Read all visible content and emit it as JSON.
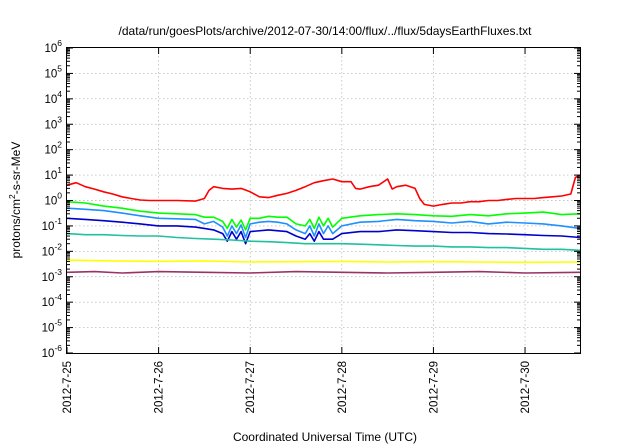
{
  "chart_data": {
    "type": "line",
    "title": "/data/run/goesPlots/archive/2012-07-30/14:00/flux/../flux/5daysEarthFluxes.txt",
    "xlabel": "Coordinated Universal Time (UTC)",
    "ylabel_main": "protons/cm",
    "ylabel_sup": "2",
    "ylabel_tail": "-s-sr-MeV",
    "y_scale": "log",
    "ylim": [
      1e-06,
      1000000.0
    ],
    "y_tick_base": "10",
    "y_tick_exponents": [
      "-6",
      "-5",
      "-4",
      "-3",
      "-2",
      "-1",
      "0",
      "1",
      "2",
      "3",
      "4",
      "5",
      "6"
    ],
    "x_range_days": [
      0,
      5.6
    ],
    "x_tick_labels": [
      "2012-7-25",
      "2012-7-26",
      "2012-7-27",
      "2012-7-28",
      "2012-7-29",
      "2012-7-30"
    ],
    "grid": true,
    "legend": "none",
    "series": [
      {
        "color": "#ff0000",
        "points": [
          [
            0,
            4
          ],
          [
            0.1,
            5
          ],
          [
            0.2,
            3.5
          ],
          [
            0.3,
            2.8
          ],
          [
            0.4,
            2.2
          ],
          [
            0.5,
            1.8
          ],
          [
            0.6,
            1.4
          ],
          [
            0.7,
            1.2
          ],
          [
            0.8,
            1.05
          ],
          [
            0.9,
            1.0
          ],
          [
            1.0,
            1.0
          ],
          [
            1.2,
            1.0
          ],
          [
            1.4,
            0.95
          ],
          [
            1.5,
            1.2
          ],
          [
            1.55,
            2.5
          ],
          [
            1.6,
            3.5
          ],
          [
            1.7,
            3.0
          ],
          [
            1.8,
            2.8
          ],
          [
            1.9,
            3.0
          ],
          [
            2.0,
            2.2
          ],
          [
            2.1,
            1.4
          ],
          [
            2.2,
            1.3
          ],
          [
            2.3,
            1.6
          ],
          [
            2.4,
            1.9
          ],
          [
            2.5,
            2.5
          ],
          [
            2.6,
            3.5
          ],
          [
            2.7,
            5
          ],
          [
            2.8,
            6
          ],
          [
            2.9,
            7
          ],
          [
            3.0,
            5.5
          ],
          [
            3.1,
            5.5
          ],
          [
            3.15,
            3
          ],
          [
            3.2,
            2.8
          ],
          [
            3.3,
            3.5
          ],
          [
            3.4,
            4
          ],
          [
            3.5,
            7
          ],
          [
            3.55,
            2.8
          ],
          [
            3.6,
            3.5
          ],
          [
            3.7,
            4
          ],
          [
            3.8,
            3
          ],
          [
            3.85,
            1.2
          ],
          [
            3.9,
            0.7
          ],
          [
            4.0,
            0.6
          ],
          [
            4.1,
            0.7
          ],
          [
            4.2,
            0.8
          ],
          [
            4.3,
            0.8
          ],
          [
            4.4,
            0.9
          ],
          [
            4.5,
            0.9
          ],
          [
            4.6,
            1.0
          ],
          [
            4.7,
            1.0
          ],
          [
            4.8,
            1.1
          ],
          [
            4.9,
            1.2
          ],
          [
            5.0,
            1.2
          ],
          [
            5.1,
            1.2
          ],
          [
            5.2,
            1.3
          ],
          [
            5.3,
            1.4
          ],
          [
            5.4,
            1.5
          ],
          [
            5.5,
            1.8
          ],
          [
            5.55,
            8
          ],
          [
            5.6,
            10
          ]
        ]
      },
      {
        "color": "#00ff00",
        "points": [
          [
            0,
            0.9
          ],
          [
            0.2,
            0.8
          ],
          [
            0.4,
            0.6
          ],
          [
            0.6,
            0.5
          ],
          [
            0.8,
            0.38
          ],
          [
            1.0,
            0.32
          ],
          [
            1.2,
            0.3
          ],
          [
            1.4,
            0.28
          ],
          [
            1.5,
            0.22
          ],
          [
            1.6,
            0.22
          ],
          [
            1.7,
            0.15
          ],
          [
            1.75,
            0.08
          ],
          [
            1.8,
            0.18
          ],
          [
            1.85,
            0.09
          ],
          [
            1.9,
            0.17
          ],
          [
            1.95,
            0.07
          ],
          [
            2.0,
            0.2
          ],
          [
            2.1,
            0.2
          ],
          [
            2.2,
            0.24
          ],
          [
            2.3,
            0.22
          ],
          [
            2.4,
            0.22
          ],
          [
            2.5,
            0.12
          ],
          [
            2.6,
            0.1
          ],
          [
            2.65,
            0.18
          ],
          [
            2.7,
            0.08
          ],
          [
            2.75,
            0.22
          ],
          [
            2.8,
            0.1
          ],
          [
            2.85,
            0.2
          ],
          [
            2.9,
            0.09
          ],
          [
            3.0,
            0.2
          ],
          [
            3.2,
            0.25
          ],
          [
            3.4,
            0.28
          ],
          [
            3.6,
            0.3
          ],
          [
            3.8,
            0.28
          ],
          [
            4.0,
            0.25
          ],
          [
            4.2,
            0.24
          ],
          [
            4.4,
            0.28
          ],
          [
            4.6,
            0.25
          ],
          [
            4.8,
            0.3
          ],
          [
            5.0,
            0.32
          ],
          [
            5.2,
            0.35
          ],
          [
            5.4,
            0.28
          ],
          [
            5.6,
            0.3
          ]
        ]
      },
      {
        "color": "#1e90ff",
        "points": [
          [
            0,
            0.5
          ],
          [
            0.2,
            0.45
          ],
          [
            0.4,
            0.4
          ],
          [
            0.6,
            0.32
          ],
          [
            0.8,
            0.25
          ],
          [
            1.0,
            0.2
          ],
          [
            1.2,
            0.19
          ],
          [
            1.4,
            0.18
          ],
          [
            1.5,
            0.12
          ],
          [
            1.6,
            0.15
          ],
          [
            1.7,
            0.09
          ],
          [
            1.75,
            0.04
          ],
          [
            1.8,
            0.1
          ],
          [
            1.85,
            0.05
          ],
          [
            1.9,
            0.11
          ],
          [
            1.95,
            0.035
          ],
          [
            2.0,
            0.12
          ],
          [
            2.1,
            0.14
          ],
          [
            2.2,
            0.15
          ],
          [
            2.3,
            0.14
          ],
          [
            2.4,
            0.12
          ],
          [
            2.5,
            0.07
          ],
          [
            2.6,
            0.05
          ],
          [
            2.65,
            0.1
          ],
          [
            2.7,
            0.04
          ],
          [
            2.75,
            0.12
          ],
          [
            2.8,
            0.05
          ],
          [
            2.85,
            0.1
          ],
          [
            2.9,
            0.05
          ],
          [
            3.0,
            0.1
          ],
          [
            3.2,
            0.14
          ],
          [
            3.4,
            0.15
          ],
          [
            3.6,
            0.18
          ],
          [
            3.8,
            0.16
          ],
          [
            4.0,
            0.15
          ],
          [
            4.2,
            0.13
          ],
          [
            4.4,
            0.15
          ],
          [
            4.6,
            0.12
          ],
          [
            4.8,
            0.14
          ],
          [
            5.0,
            0.13
          ],
          [
            5.2,
            0.12
          ],
          [
            5.4,
            0.1
          ],
          [
            5.6,
            0.08
          ]
        ]
      },
      {
        "color": "#0000cd",
        "points": [
          [
            0,
            0.2
          ],
          [
            0.2,
            0.18
          ],
          [
            0.4,
            0.16
          ],
          [
            0.6,
            0.14
          ],
          [
            0.8,
            0.12
          ],
          [
            1.0,
            0.1
          ],
          [
            1.2,
            0.1
          ],
          [
            1.4,
            0.09
          ],
          [
            1.5,
            0.08
          ],
          [
            1.6,
            0.07
          ],
          [
            1.7,
            0.05
          ],
          [
            1.75,
            0.025
          ],
          [
            1.8,
            0.06
          ],
          [
            1.85,
            0.03
          ],
          [
            1.9,
            0.06
          ],
          [
            1.95,
            0.02
          ],
          [
            2.0,
            0.06
          ],
          [
            2.2,
            0.07
          ],
          [
            2.4,
            0.06
          ],
          [
            2.5,
            0.04
          ],
          [
            2.6,
            0.03
          ],
          [
            2.65,
            0.05
          ],
          [
            2.7,
            0.025
          ],
          [
            2.75,
            0.06
          ],
          [
            2.8,
            0.03
          ],
          [
            2.9,
            0.03
          ],
          [
            3.0,
            0.05
          ],
          [
            3.2,
            0.06
          ],
          [
            3.4,
            0.06
          ],
          [
            3.6,
            0.07
          ],
          [
            3.8,
            0.065
          ],
          [
            4.0,
            0.06
          ],
          [
            4.2,
            0.055
          ],
          [
            4.4,
            0.055
          ],
          [
            4.6,
            0.05
          ],
          [
            4.8,
            0.048
          ],
          [
            5.0,
            0.045
          ],
          [
            5.2,
            0.042
          ],
          [
            5.4,
            0.04
          ],
          [
            5.6,
            0.035
          ]
        ]
      },
      {
        "color": "#20c0a0",
        "points": [
          [
            0,
            0.05
          ],
          [
            0.2,
            0.045
          ],
          [
            0.4,
            0.045
          ],
          [
            0.6,
            0.042
          ],
          [
            0.8,
            0.04
          ],
          [
            1.0,
            0.04
          ],
          [
            1.2,
            0.035
          ],
          [
            1.4,
            0.032
          ],
          [
            1.6,
            0.03
          ],
          [
            1.8,
            0.028
          ],
          [
            2.0,
            0.025
          ],
          [
            2.2,
            0.024
          ],
          [
            2.4,
            0.022
          ],
          [
            2.6,
            0.02
          ],
          [
            2.8,
            0.02
          ],
          [
            3.0,
            0.02
          ],
          [
            3.2,
            0.019
          ],
          [
            3.4,
            0.018
          ],
          [
            3.6,
            0.017
          ],
          [
            3.8,
            0.016
          ],
          [
            4.0,
            0.016
          ],
          [
            4.2,
            0.015
          ],
          [
            4.4,
            0.015
          ],
          [
            4.6,
            0.014
          ],
          [
            4.8,
            0.014
          ],
          [
            5.0,
            0.013
          ],
          [
            5.2,
            0.012
          ],
          [
            5.4,
            0.012
          ],
          [
            5.6,
            0.011
          ]
        ]
      },
      {
        "color": "#ffff00",
        "points": [
          [
            0,
            0.0045
          ],
          [
            0.5,
            0.0042
          ],
          [
            1.0,
            0.004
          ],
          [
            1.5,
            0.0042
          ],
          [
            2.0,
            0.0038
          ],
          [
            2.5,
            0.0039
          ],
          [
            3.0,
            0.004
          ],
          [
            3.5,
            0.0038
          ],
          [
            4.0,
            0.0039
          ],
          [
            4.5,
            0.0038
          ],
          [
            5.0,
            0.0037
          ],
          [
            5.6,
            0.0038
          ]
        ]
      },
      {
        "color": "#993366",
        "points": [
          [
            0,
            0.0015
          ],
          [
            0.3,
            0.0016
          ],
          [
            0.6,
            0.0014
          ],
          [
            1.0,
            0.0016
          ],
          [
            1.5,
            0.0015
          ],
          [
            2.0,
            0.0014
          ],
          [
            2.5,
            0.0016
          ],
          [
            3.0,
            0.0015
          ],
          [
            3.5,
            0.0014
          ],
          [
            4.0,
            0.0015
          ],
          [
            4.5,
            0.0016
          ],
          [
            5.0,
            0.0014
          ],
          [
            5.6,
            0.0015
          ]
        ]
      }
    ]
  }
}
